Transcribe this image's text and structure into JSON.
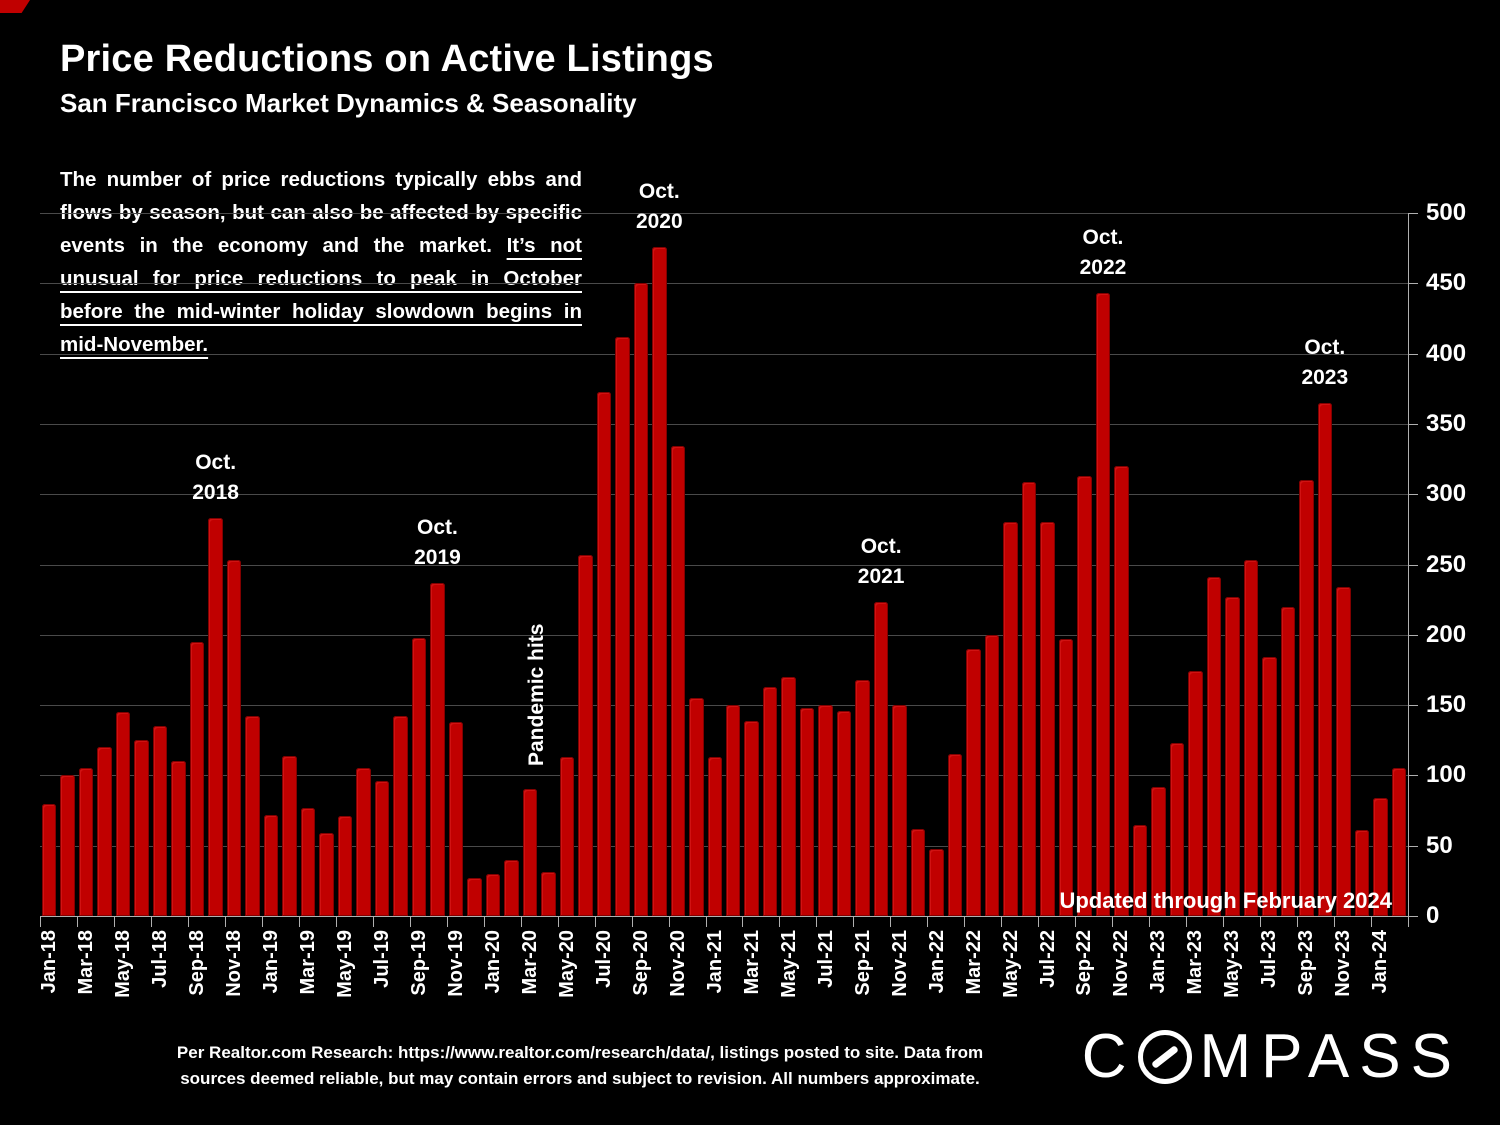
{
  "header": {
    "title": "Price Reductions on Active Listings",
    "subtitle": "San Francisco Market Dynamics & Seasonality"
  },
  "intro": {
    "text_normal": "The number of price reductions typically ebbs and flows by season, but can also be affected by specific events in the economy and the market. ",
    "text_underlined": "It’s not unusual for price reductions to peak in October before the mid-winter holiday slowdown begins in mid-November."
  },
  "annotations": {
    "peaks": [
      {
        "line1": "Oct.",
        "line2": "2018",
        "month": "Oct-18"
      },
      {
        "line1": "Oct.",
        "line2": "2019",
        "month": "Oct-19"
      },
      {
        "line1": "Oct.",
        "line2": "2020",
        "month": "Oct-20"
      },
      {
        "line1": "Oct.",
        "line2": "2021",
        "month": "Oct-21"
      },
      {
        "line1": "Oct.",
        "line2": "2022",
        "month": "Oct-22"
      },
      {
        "line1": "Oct.",
        "line2": "2023",
        "month": "Oct-23"
      }
    ],
    "pandemic": "Pandemic hits",
    "updated": "Updated through February 2024"
  },
  "chart_data": {
    "type": "bar",
    "title": "Price Reductions on Active Listings",
    "xlabel": "",
    "ylabel": "",
    "ylim": [
      0,
      500
    ],
    "yticks": [
      0,
      50,
      100,
      150,
      200,
      250,
      300,
      350,
      400,
      450,
      500
    ],
    "grid": true,
    "axis_side": "right",
    "bar_color": "#c00000",
    "categories": [
      "Jan-18",
      "Feb-18",
      "Mar-18",
      "Apr-18",
      "May-18",
      "Jun-18",
      "Jul-18",
      "Aug-18",
      "Sep-18",
      "Oct-18",
      "Nov-18",
      "Dec-18",
      "Jan-19",
      "Feb-19",
      "Mar-19",
      "Apr-19",
      "May-19",
      "Jun-19",
      "Jul-19",
      "Aug-19",
      "Sep-19",
      "Oct-19",
      "Nov-19",
      "Dec-19",
      "Jan-20",
      "Feb-20",
      "Mar-20",
      "Apr-20",
      "May-20",
      "Jun-20",
      "Jul-20",
      "Aug-20",
      "Sep-20",
      "Oct-20",
      "Nov-20",
      "Dec-20",
      "Jan-21",
      "Feb-21",
      "Mar-21",
      "Apr-21",
      "May-21",
      "Jun-21",
      "Jul-21",
      "Aug-21",
      "Sep-21",
      "Oct-21",
      "Nov-21",
      "Dec-21",
      "Jan-22",
      "Feb-22",
      "Mar-22",
      "Apr-22",
      "May-22",
      "Jun-22",
      "Jul-22",
      "Aug-22",
      "Sep-22",
      "Oct-22",
      "Nov-22",
      "Dec-22",
      "Jan-23",
      "Feb-23",
      "Mar-23",
      "Apr-23",
      "May-23",
      "Jun-23",
      "Jul-23",
      "Aug-23",
      "Sep-23",
      "Oct-23",
      "Nov-23",
      "Dec-23",
      "Jan-24",
      "Feb-24"
    ],
    "values": [
      80,
      100,
      105,
      120,
      145,
      125,
      135,
      110,
      195,
      283,
      253,
      142,
      72,
      114,
      77,
      59,
      71,
      105,
      96,
      142,
      198,
      237,
      138,
      27,
      30,
      40,
      90,
      31,
      113,
      257,
      373,
      412,
      450,
      476,
      334,
      155,
      113,
      150,
      139,
      163,
      170,
      148,
      150,
      146,
      168,
      223,
      150,
      62,
      48,
      115,
      190,
      200,
      280,
      309,
      280,
      197,
      313,
      443,
      320,
      65,
      92,
      123,
      174,
      241,
      227,
      253,
      184,
      220,
      310,
      365,
      234,
      61,
      84,
      105
    ],
    "xtick_labels": [
      "Jan-18",
      "Mar-18",
      "May-18",
      "Jul-18",
      "Sep-18",
      "Nov-18",
      "Jan-19",
      "Mar-19",
      "May-19",
      "Jul-19",
      "Sep-19",
      "Nov-19",
      "Jan-20",
      "Mar-20",
      "May-20",
      "Jul-20",
      "Sep-20",
      "Nov-20",
      "Jan-21",
      "Mar-21",
      "May-21",
      "Jul-21",
      "Sep-21",
      "Nov-21",
      "Jan-22",
      "Mar-22",
      "May-22",
      "Jul-22",
      "Sep-22",
      "Nov-22",
      "Jan-23",
      "Mar-23",
      "May-23",
      "Jul-23",
      "Sep-23",
      "Nov-23",
      "Jan-24"
    ]
  },
  "footer": {
    "line1": "Per Realtor.com Research:  https://www.realtor.com/research/data/, listings posted to site. Data from",
    "line2": "sources deemed reliable, but may contain errors and subject to revision. All numbers approximate."
  },
  "logo": {
    "pre": "C",
    "post": "MPASS"
  }
}
